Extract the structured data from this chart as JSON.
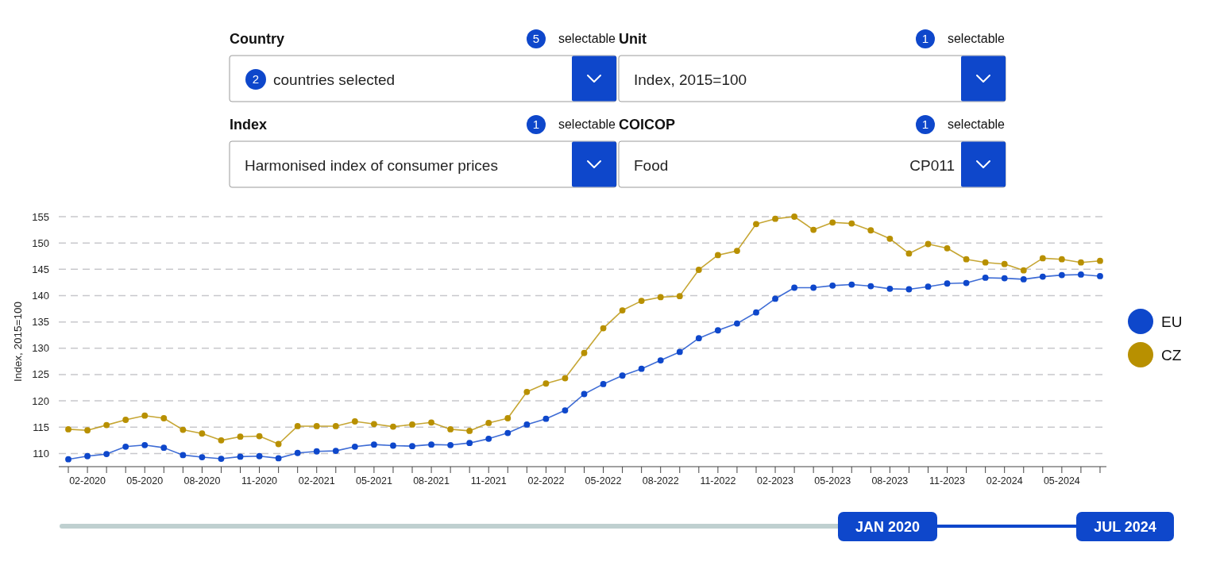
{
  "chart_data": {
    "type": "line",
    "ylabel": "Index, 2015=100",
    "annotations": [
      "Country",
      "5",
      "selectable",
      "2",
      "countries selected",
      "Unit",
      "1",
      "selectable",
      "Index, 2015=100",
      "Index",
      "1",
      "selectable",
      "Harmonised index of consumer prices",
      "COICOP",
      "1",
      "selectable",
      "Food",
      "CP011",
      "JAN 2020",
      "JUL 2024"
    ],
    "categories": [
      null,
      "02-2020",
      null,
      null,
      "05-2020",
      null,
      null,
      "08-2020",
      null,
      null,
      "11-2020",
      null,
      null,
      "02-2021",
      null,
      null,
      "05-2021",
      null,
      null,
      "08-2021",
      null,
      null,
      "11-2021",
      null,
      null,
      "02-2022",
      null,
      null,
      "05-2022",
      null,
      null,
      "08-2022",
      null,
      null,
      "11-2022",
      null,
      null,
      "02-2023",
      null,
      null,
      "05-2023",
      null,
      null,
      "08-2023",
      null,
      null,
      "11-2023",
      null,
      null,
      "02-2024",
      null,
      null,
      "05-2024",
      null,
      null
    ],
    "series": [
      {
        "name": "EU",
        "color": "#0e47cb",
        "values": [
          108.9,
          109.5,
          109.9,
          111.3,
          111.6,
          111.1,
          109.7,
          109.3,
          109.0,
          109.4,
          109.5,
          109.1,
          110.1,
          110.4,
          110.5,
          111.3,
          111.7,
          111.5,
          111.4,
          111.7,
          111.6,
          112.0,
          112.8,
          113.9,
          115.5,
          116.6,
          118.2,
          121.3,
          123.2,
          124.8,
          126.1,
          127.7,
          129.3,
          131.9,
          133.4,
          134.7,
          136.8,
          139.4,
          141.5,
          141.5,
          141.9,
          142.1,
          141.8,
          141.3,
          141.2,
          141.7,
          142.3,
          142.4,
          143.4,
          143.3,
          143.1,
          143.6,
          143.9,
          144.0,
          143.7
        ]
      },
      {
        "name": "CZ",
        "color": "#b89000",
        "values": [
          114.6,
          114.4,
          115.4,
          116.4,
          117.2,
          116.7,
          114.5,
          113.8,
          112.5,
          113.2,
          113.3,
          111.8,
          115.2,
          115.2,
          115.2,
          116.1,
          115.6,
          115.1,
          115.5,
          115.9,
          114.6,
          114.3,
          115.8,
          116.7,
          121.7,
          123.3,
          124.3,
          129.1,
          133.8,
          137.2,
          139.0,
          139.7,
          139.9,
          144.9,
          147.7,
          148.5,
          153.6,
          154.6,
          155.0,
          152.5,
          153.9,
          153.7,
          152.4,
          150.8,
          148.0,
          149.8,
          149.0,
          146.9,
          146.3,
          146.0,
          144.8,
          147.1,
          146.9,
          146.3,
          146.6
        ]
      }
    ],
    "ylim": [
      107.5,
      155
    ],
    "yticks": [
      110,
      115,
      120,
      125,
      130,
      135,
      140,
      145,
      150,
      155
    ],
    "grid": "y",
    "legend": "right",
    "marker": "circle",
    "line_style": "solid"
  }
}
